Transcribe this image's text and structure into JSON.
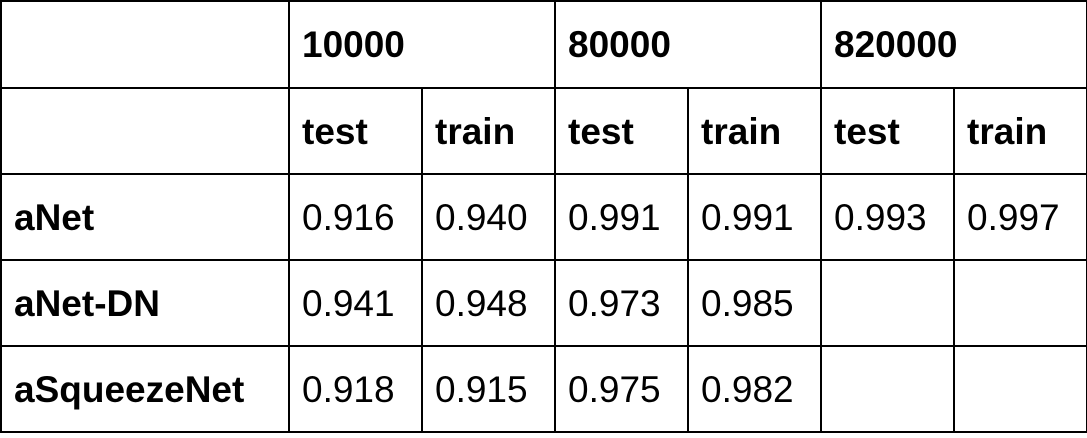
{
  "table": {
    "size_headers": [
      "10000",
      "80000",
      "820000"
    ],
    "split_headers": [
      "test",
      "train",
      "test",
      "train",
      "test",
      "train"
    ],
    "rows": [
      {
        "model": "aNet",
        "values": [
          "0.916",
          "0.940",
          "0.991",
          "0.991",
          "0.993",
          "0.997"
        ]
      },
      {
        "model": "aNet-DN",
        "values": [
          "0.941",
          "0.948",
          "0.973",
          "0.985",
          "",
          ""
        ]
      },
      {
        "model": "aSqueezeNet",
        "values": [
          "0.918",
          "0.915",
          "0.975",
          "0.982",
          "",
          ""
        ]
      }
    ]
  }
}
